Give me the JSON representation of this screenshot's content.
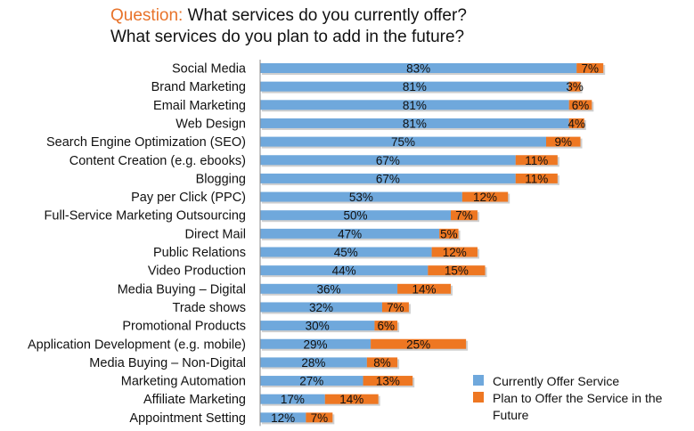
{
  "title": {
    "prefix": "Question:",
    "line1": "What services do you currently offer?",
    "line2": "What services do you plan to add in the future?"
  },
  "colors": {
    "current": "#6FA8DC",
    "plan": "#EE7722"
  },
  "chart_data": {
    "type": "bar",
    "orientation": "horizontal",
    "stacked": true,
    "categories": [
      "Social Media",
      "Brand Marketing",
      "Email Marketing",
      "Web Design",
      "Search Engine Optimization (SEO)",
      "Content Creation (e.g. ebooks)",
      "Blogging",
      "Pay per Click (PPC)",
      "Full-Service Marketing Outsourcing",
      "Direct Mail",
      "Public Relations",
      "Video Production",
      "Media Buying – Digital",
      "Trade shows",
      "Promotional Products",
      "Application Development (e.g. mobile)",
      "Media Buying – Non-Digital",
      "Marketing Automation",
      "Affiliate Marketing",
      "Appointment Setting"
    ],
    "series": [
      {
        "name": "Currently Offer Service",
        "values": [
          83,
          81,
          81,
          81,
          75,
          67,
          67,
          53,
          50,
          47,
          45,
          44,
          36,
          32,
          30,
          29,
          28,
          27,
          17,
          12
        ],
        "labels": [
          "83%",
          "81%",
          "81%",
          "81%",
          "75%",
          "67%",
          "67%",
          "53%",
          "50%",
          "47%",
          "45%",
          "44%",
          "36%",
          "32%",
          "30%",
          "29%",
          "28%",
          "27%",
          "17%",
          "12%"
        ]
      },
      {
        "name": "Plan to Offer the Service in the Future",
        "values": [
          7,
          3,
          6,
          4,
          9,
          11,
          11,
          12,
          7,
          5,
          12,
          15,
          14,
          7,
          6,
          25,
          8,
          13,
          14,
          7
        ],
        "labels": [
          "7%",
          "3%",
          "6%",
          "4%",
          "9%",
          "11%",
          "11%",
          "12%",
          "7%",
          "5%",
          "12%",
          "15%",
          "14%",
          "7%",
          "6%",
          "25%",
          "8%",
          "13%",
          "14%",
          "7%"
        ]
      }
    ],
    "xlim": [
      0,
      100
    ],
    "grid": false,
    "legend": "bottom-right"
  }
}
